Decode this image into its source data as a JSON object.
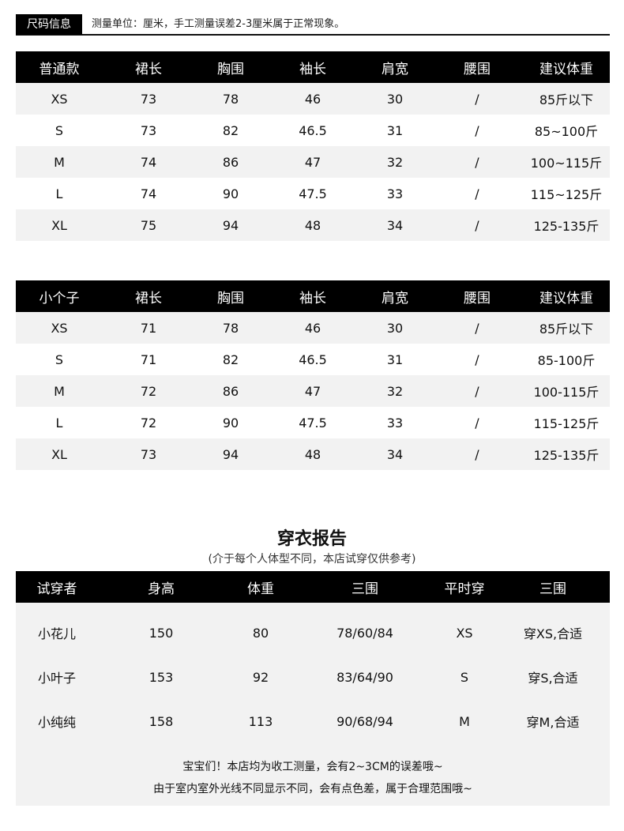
{
  "header": {
    "tag": "尺码信息",
    "note": "测量单位：厘米，手工测量误差2-3厘米属于正常现象。"
  },
  "regular_table": {
    "columns": [
      "普通款",
      "裙长",
      "胸围",
      "袖长",
      "肩宽",
      "腰围",
      "建议体重"
    ],
    "rows": [
      [
        "XS",
        "73",
        "78",
        "46",
        "30",
        "/",
        "85斤以下"
      ],
      [
        "S",
        "73",
        "82",
        "46.5",
        "31",
        "/",
        "85~100斤"
      ],
      [
        "M",
        "74",
        "86",
        "47",
        "32",
        "/",
        "100~115斤"
      ],
      [
        "L",
        "74",
        "90",
        "47.5",
        "33",
        "/",
        "115~125斤"
      ],
      [
        "XL",
        "75",
        "94",
        "48",
        "34",
        "/",
        "125-135斤"
      ]
    ]
  },
  "petite_table": {
    "columns": [
      "小个子",
      "裙长",
      "胸围",
      "袖长",
      "肩宽",
      "腰围",
      "建议体重"
    ],
    "rows": [
      [
        "XS",
        "71",
        "78",
        "46",
        "30",
        "/",
        "85斤以下"
      ],
      [
        "S",
        "71",
        "82",
        "46.5",
        "31",
        "/",
        "85-100斤"
      ],
      [
        "M",
        "72",
        "86",
        "47",
        "32",
        "/",
        "100-115斤"
      ],
      [
        "L",
        "72",
        "90",
        "47.5",
        "33",
        "/",
        "115-125斤"
      ],
      [
        "XL",
        "73",
        "94",
        "48",
        "34",
        "/",
        "125-135斤"
      ]
    ]
  },
  "report": {
    "title": "穿衣报告",
    "subtitle": "(介于每个人体型不同，本店试穿仅供参考)",
    "columns": [
      "试穿者",
      "身高",
      "体重",
      "三围",
      "平时穿",
      "三围"
    ],
    "rows": [
      [
        "小花儿",
        "150",
        "80",
        "78/60/84",
        "XS",
        "穿XS,合适"
      ],
      [
        "小叶子",
        "153",
        "92",
        "83/64/90",
        "S",
        "穿S,合适"
      ],
      [
        "小纯纯",
        "158",
        "113",
        "90/68/94",
        "M",
        "穿M,合适"
      ]
    ],
    "notes": [
      "宝宝们！本店均为收工测量，会有2~3CM的误差哦~",
      "由于室内室外光线不同显示不同，会有点色差，属于合理范围哦~"
    ]
  }
}
